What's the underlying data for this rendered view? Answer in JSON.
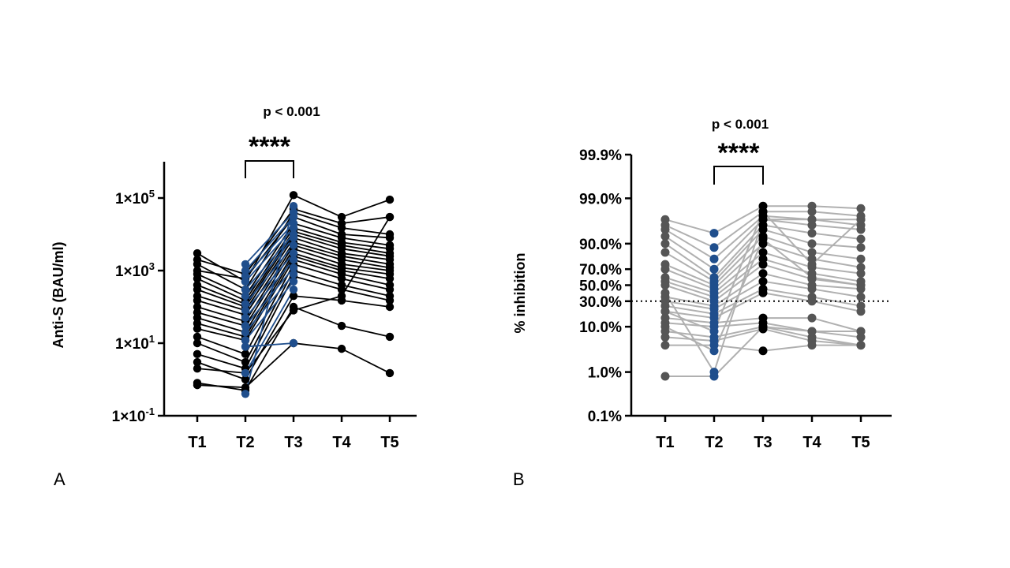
{
  "panel_labels": [
    "A",
    "B"
  ],
  "chart_data": [
    {
      "panel": "A",
      "type": "line",
      "scale": "log10",
      "title": "",
      "xlabel": "",
      "ylabel": "Anti-S (BAU/ml)",
      "categories": [
        "T1",
        "T2",
        "T3",
        "T4",
        "T5"
      ],
      "ylim": [
        0.1,
        1000000
      ],
      "yticks": [
        {
          "value": 0.1,
          "label_base": "1×10",
          "label_exp": "-1"
        },
        {
          "value": 10,
          "label_base": "1×10",
          "label_exp": "1"
        },
        {
          "value": 1000,
          "label_base": "1×10",
          "label_exp": "3"
        },
        {
          "value": 100000,
          "label_base": "1×10",
          "label_exp": "5"
        }
      ],
      "significance": {
        "from": "T2",
        "to": "T3",
        "p_text": "p < 0.001",
        "stars": "****"
      },
      "colors": {
        "black_series": "#000000",
        "blue_series": "#1f4e8c"
      },
      "series": [
        {
          "color": "black",
          "values": [
            3000,
            500,
            120000,
            30000,
            90000
          ]
        },
        {
          "color": "black",
          "values": [
            2000,
            800,
            50000,
            20000,
            30000
          ]
        },
        {
          "color": "black",
          "values": [
            1500,
            300,
            40000,
            15000,
            10000
          ]
        },
        {
          "color": "black",
          "values": [
            1000,
            600,
            30000,
            10000,
            8000
          ]
        },
        {
          "color": "black",
          "values": [
            800,
            200,
            20000,
            8000,
            5000
          ]
        },
        {
          "color": "black",
          "values": [
            600,
            150,
            15000,
            6000,
            4000
          ]
        },
        {
          "color": "black",
          "values": [
            400,
            120,
            12000,
            5000,
            3000
          ]
        },
        {
          "color": "black",
          "values": [
            300,
            100,
            10000,
            4000,
            2500
          ]
        },
        {
          "color": "black",
          "values": [
            200,
            80,
            8000,
            3000,
            2000
          ]
        },
        {
          "color": "black",
          "values": [
            150,
            60,
            6000,
            2500,
            1500
          ]
        },
        {
          "color": "black",
          "values": [
            100,
            40,
            5000,
            2000,
            1200
          ]
        },
        {
          "color": "black",
          "values": [
            70,
            30,
            4000,
            1500,
            1000
          ]
        },
        {
          "color": "black",
          "values": [
            50,
            20,
            3000,
            1200,
            800
          ]
        },
        {
          "color": "black",
          "values": [
            35,
            15,
            2500,
            1000,
            600
          ]
        },
        {
          "color": "black",
          "values": [
            25,
            12,
            2000,
            800,
            400
          ]
        },
        {
          "color": "black",
          "values": [
            15,
            5,
            1500,
            600,
            300
          ]
        },
        {
          "color": "black",
          "values": [
            10,
            3,
            1000,
            400,
            200
          ]
        },
        {
          "color": "black",
          "values": [
            5,
            2,
            700,
            300,
            150
          ]
        },
        {
          "color": "black",
          "values": [
            3,
            1,
            200,
            150,
            100
          ]
        },
        {
          "color": "black",
          "values": [
            0.8,
            0.5,
            100,
            30,
            15
          ]
        },
        {
          "color": "black",
          "values": [
            0.7,
            0.6,
            10,
            7,
            1.5
          ]
        },
        {
          "color": "black",
          "values": [
            2,
            1.5,
            80,
            200,
            30000
          ]
        },
        {
          "color": "blue",
          "values": [
            null,
            1500,
            40000,
            null,
            null
          ]
        },
        {
          "color": "blue",
          "values": [
            null,
            1000,
            30000,
            null,
            null
          ]
        },
        {
          "color": "blue",
          "values": [
            null,
            700,
            20000,
            null,
            null
          ]
        },
        {
          "color": "blue",
          "values": [
            null,
            500,
            15000,
            null,
            null
          ]
        },
        {
          "color": "blue",
          "values": [
            null,
            300,
            10000,
            null,
            null
          ]
        },
        {
          "color": "blue",
          "values": [
            null,
            200,
            8000,
            null,
            null
          ]
        },
        {
          "color": "blue",
          "values": [
            null,
            120,
            5000,
            null,
            null
          ]
        },
        {
          "color": "blue",
          "values": [
            null,
            80,
            3000,
            null,
            null
          ]
        },
        {
          "color": "blue",
          "values": [
            null,
            50,
            2000,
            null,
            null
          ]
        },
        {
          "color": "blue",
          "values": [
            null,
            30,
            1200,
            null,
            null
          ]
        },
        {
          "color": "blue",
          "values": [
            null,
            20,
            800,
            null,
            null
          ]
        },
        {
          "color": "blue",
          "values": [
            null,
            12,
            500,
            null,
            null
          ]
        },
        {
          "color": "blue",
          "values": [
            null,
            8,
            10,
            null,
            null
          ]
        },
        {
          "color": "blue",
          "values": [
            null,
            1.5,
            300,
            null,
            null
          ]
        },
        {
          "color": "blue",
          "values": [
            null,
            0.4,
            60000,
            null,
            null
          ]
        }
      ]
    },
    {
      "panel": "B",
      "type": "line",
      "scale": "logit",
      "title": "",
      "xlabel": "",
      "ylabel": "% inhibition",
      "categories": [
        "T1",
        "T2",
        "T3",
        "T4",
        "T5"
      ],
      "ylim": [
        0.1,
        99.9
      ],
      "yticks": [
        {
          "value": 0.1,
          "label": "0.1%"
        },
        {
          "value": 1.0,
          "label": "1.0%"
        },
        {
          "value": 10.0,
          "label": "10.0%"
        },
        {
          "value": 30.0,
          "label": "30.0%"
        },
        {
          "value": 50.0,
          "label": "50.0%"
        },
        {
          "value": 70.0,
          "label": "70.0%"
        },
        {
          "value": 90.0,
          "label": "90.0%"
        },
        {
          "value": 99.0,
          "label": "99.0%"
        },
        {
          "value": 99.9,
          "label": "99.9%"
        }
      ],
      "threshold": 30.0,
      "significance": {
        "from": "T2",
        "to": "T3",
        "p_text": "p < 0.001",
        "stars": "****"
      },
      "colors": {
        "line": "#b0b0b0",
        "point_t1": "#555555",
        "point_t2": "#1f4e8c",
        "point_t3": "#000000",
        "point_t4": "#555555",
        "point_t5": "#555555"
      },
      "series": [
        {
          "values": [
            97,
            94,
            98.5,
            98.5,
            98.3
          ]
        },
        {
          "values": [
            96,
            88,
            98,
            98,
            97.5
          ]
        },
        {
          "values": [
            95,
            80,
            97.5,
            97,
            96
          ]
        },
        {
          "values": [
            93,
            70,
            97,
            96,
            95
          ]
        },
        {
          "values": [
            90,
            60,
            96,
            94,
            92
          ]
        },
        {
          "values": [
            85,
            55,
            95,
            90,
            88
          ]
        },
        {
          "values": [
            75,
            50,
            93,
            85,
            80
          ]
        },
        {
          "values": [
            70,
            45,
            90,
            80,
            72
          ]
        },
        {
          "values": [
            60,
            40,
            85,
            72,
            65
          ]
        },
        {
          "values": [
            55,
            35,
            80,
            65,
            55
          ]
        },
        {
          "values": [
            50,
            30,
            75,
            58,
            50
          ]
        },
        {
          "values": [
            35,
            25,
            65,
            50,
            45
          ]
        },
        {
          "values": [
            30,
            22,
            55,
            45,
            35
          ]
        },
        {
          "values": [
            25,
            18,
            45,
            35,
            25
          ]
        },
        {
          "values": [
            20,
            15,
            40,
            30,
            20
          ]
        },
        {
          "values": [
            15,
            12,
            15,
            15,
            8
          ]
        },
        {
          "values": [
            12,
            10,
            12,
            8,
            6
          ]
        },
        {
          "values": [
            8,
            6,
            10,
            6,
            4
          ]
        },
        {
          "values": [
            6,
            5,
            9,
            5,
            4
          ]
        },
        {
          "values": [
            4,
            4,
            3,
            4,
            4
          ]
        },
        {
          "values": [
            0.8,
            0.8,
            10,
            8,
            8
          ]
        },
        {
          "values": [
            40,
            1,
            97,
            97,
            97
          ]
        },
        {
          "values": [
            10,
            3,
            92,
            60,
            50
          ]
        },
        {
          "values": [
            20,
            8,
            98,
            75,
            97
          ]
        }
      ]
    }
  ]
}
